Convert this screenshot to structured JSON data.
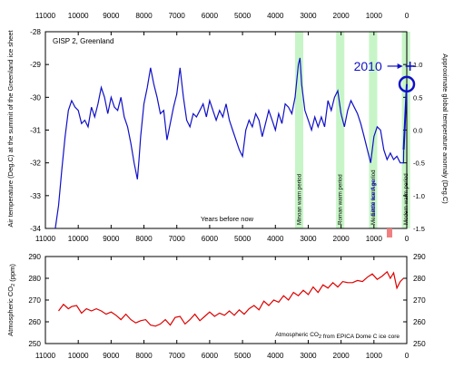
{
  "colors": {
    "temperature": "#1010c8",
    "co2": "#dd0000",
    "warm_band": "#c7f5c7",
    "annotation": "#1010c8",
    "ice_age_text": "#2020c0",
    "axis": "#000000"
  },
  "top_axis": {
    "ticks": [
      11000,
      10000,
      9000,
      8000,
      7000,
      6000,
      5000,
      4000,
      3000,
      2000,
      1000,
      0
    ]
  },
  "bottom_axis": {
    "label": "Years before now",
    "ticks": [
      11000,
      10000,
      9000,
      8000,
      7000,
      6000,
      5000,
      4000,
      3000,
      2000,
      1000,
      0
    ]
  },
  "chart_data": [
    {
      "type": "line",
      "panel_label": "GISP 2, Greenland",
      "xlabel": "Years before now",
      "ylabel": "Air temperature (Deg.C) at the summit of the Greenland ice sheet",
      "y2label": "Approximate global temperature anomaly (Deg.C)",
      "xlim": [
        11000,
        0
      ],
      "ylim": [
        -34,
        -28
      ],
      "yticks": [
        -34,
        -33,
        -32,
        -31,
        -30,
        -29,
        -28
      ],
      "y2lim": [
        -1.5,
        1.5
      ],
      "y2ticks": [
        -1.5,
        -1.0,
        -0.5,
        0.0,
        0.5,
        1.0
      ],
      "series": [
        {
          "name": "",
          "x": [
            10700,
            10600,
            10500,
            10400,
            10300,
            10200,
            10100,
            10000,
            9900,
            9800,
            9700,
            9600,
            9500,
            9400,
            9300,
            9200,
            9100,
            9000,
            8900,
            8800,
            8700,
            8600,
            8500,
            8400,
            8300,
            8200,
            8150,
            8100,
            8000,
            7900,
            7800,
            7700,
            7600,
            7500,
            7400,
            7300,
            7200,
            7100,
            7000,
            6900,
            6800,
            6700,
            6600,
            6500,
            6400,
            6300,
            6200,
            6100,
            6000,
            5900,
            5800,
            5700,
            5600,
            5500,
            5400,
            5300,
            5200,
            5100,
            5000,
            4900,
            4800,
            4700,
            4600,
            4500,
            4400,
            4300,
            4200,
            4100,
            4000,
            3900,
            3800,
            3700,
            3600,
            3500,
            3400,
            3300,
            3250,
            3200,
            3100,
            3000,
            2900,
            2800,
            2700,
            2600,
            2500,
            2400,
            2300,
            2200,
            2100,
            2000,
            1900,
            1800,
            1700,
            1600,
            1500,
            1400,
            1300,
            1200,
            1100,
            1000,
            900,
            800,
            700,
            600,
            500,
            400,
            300,
            200,
            100,
            95
          ],
          "values": [
            -34.0,
            -33.3,
            -32.2,
            -31.2,
            -30.4,
            -30.1,
            -30.3,
            -30.4,
            -30.8,
            -30.7,
            -30.9,
            -30.3,
            -30.6,
            -30.2,
            -29.7,
            -30.0,
            -30.5,
            -30.0,
            -30.3,
            -30.4,
            -30.0,
            -30.6,
            -30.9,
            -31.4,
            -32.0,
            -32.5,
            -31.9,
            -31.2,
            -30.2,
            -29.7,
            -29.1,
            -29.6,
            -30.0,
            -30.5,
            -30.4,
            -31.3,
            -30.8,
            -30.3,
            -29.9,
            -29.1,
            -30.0,
            -30.7,
            -30.9,
            -30.5,
            -30.6,
            -30.4,
            -30.2,
            -30.6,
            -30.1,
            -30.4,
            -30.7,
            -30.4,
            -30.6,
            -30.2,
            -30.7,
            -31.0,
            -31.3,
            -31.6,
            -31.8,
            -31.0,
            -30.7,
            -30.9,
            -30.5,
            -30.7,
            -31.2,
            -30.8,
            -30.4,
            -30.7,
            -31.0,
            -30.5,
            -30.8,
            -30.2,
            -30.3,
            -30.5,
            -30.0,
            -29.0,
            -28.8,
            -29.6,
            -30.4,
            -30.7,
            -31.0,
            -30.6,
            -30.9,
            -30.6,
            -30.9,
            -30.1,
            -30.4,
            -30.0,
            -29.8,
            -30.5,
            -30.9,
            -30.4,
            -30.1,
            -30.3,
            -30.5,
            -30.8,
            -31.2,
            -31.6,
            -32.0,
            -31.2,
            -30.9,
            -31.0,
            -31.6,
            -31.9,
            -31.7,
            -31.9,
            -31.8,
            -32.0,
            -32.0,
            -31.6
          ]
        }
      ],
      "warming_line": {
        "x": [
          95,
          0
        ],
        "values": [
          -31.6,
          -29.6
        ]
      },
      "marker_2010": {
        "x": 0,
        "value": -29.6
      },
      "annotation_2010": {
        "label": "2010",
        "x": -100,
        "value": -29.05
      },
      "warm_periods": [
        {
          "label": "Minoan warm period",
          "start": 3400,
          "end": 3150
        },
        {
          "label": "Roman warm period",
          "start": 2150,
          "end": 1900
        },
        {
          "label": "Medieval warm period",
          "start": 1150,
          "end": 900
        },
        {
          "label": "Modern warm period",
          "start": 150,
          "end": -100
        }
      ],
      "ice_age_label": "Little Ice Age"
    },
    {
      "type": "line",
      "xlim": [
        11000,
        0
      ],
      "ylabel": "Atmospheric CO2 (ppm)",
      "ylim": [
        250,
        290
      ],
      "yticks": [
        250,
        260,
        270,
        280,
        290
      ],
      "caption": "Atmospheric CO2 from EPICA Dome C ice core",
      "series": [
        {
          "name": "",
          "x": [
            10600,
            10450,
            10300,
            10200,
            10050,
            9900,
            9750,
            9600,
            9450,
            9300,
            9150,
            9000,
            8850,
            8700,
            8550,
            8400,
            8250,
            8100,
            7950,
            7800,
            7650,
            7500,
            7350,
            7200,
            7050,
            6900,
            6750,
            6600,
            6450,
            6300,
            6150,
            6000,
            5850,
            5700,
            5550,
            5400,
            5250,
            5100,
            4950,
            4800,
            4650,
            4500,
            4350,
            4200,
            4050,
            3900,
            3750,
            3600,
            3450,
            3300,
            3150,
            3000,
            2850,
            2700,
            2550,
            2400,
            2250,
            2100,
            1950,
            1800,
            1650,
            1500,
            1350,
            1200,
            1050,
            900,
            750,
            600,
            500,
            400,
            300,
            200,
            100
          ],
          "values": [
            265,
            268,
            266,
            267,
            267.5,
            264,
            266,
            265,
            266,
            265,
            263.5,
            264.5,
            263,
            261,
            263.5,
            261,
            259.5,
            260.5,
            261,
            258.5,
            258,
            259,
            261,
            258.5,
            262,
            262.5,
            259,
            261,
            263.5,
            260.5,
            262.5,
            264.5,
            262.5,
            264,
            263,
            265,
            263,
            265.5,
            263.5,
            266,
            267.5,
            265.5,
            269.5,
            267.5,
            270,
            269,
            272,
            270,
            273.5,
            272,
            274.5,
            272.5,
            276,
            273.5,
            277,
            275.5,
            278,
            276,
            278.5,
            278,
            278,
            279,
            278.5,
            280.5,
            282,
            279.5,
            281,
            283,
            280,
            282.5,
            275.5,
            278.5,
            280
          ]
        }
      ]
    }
  ]
}
